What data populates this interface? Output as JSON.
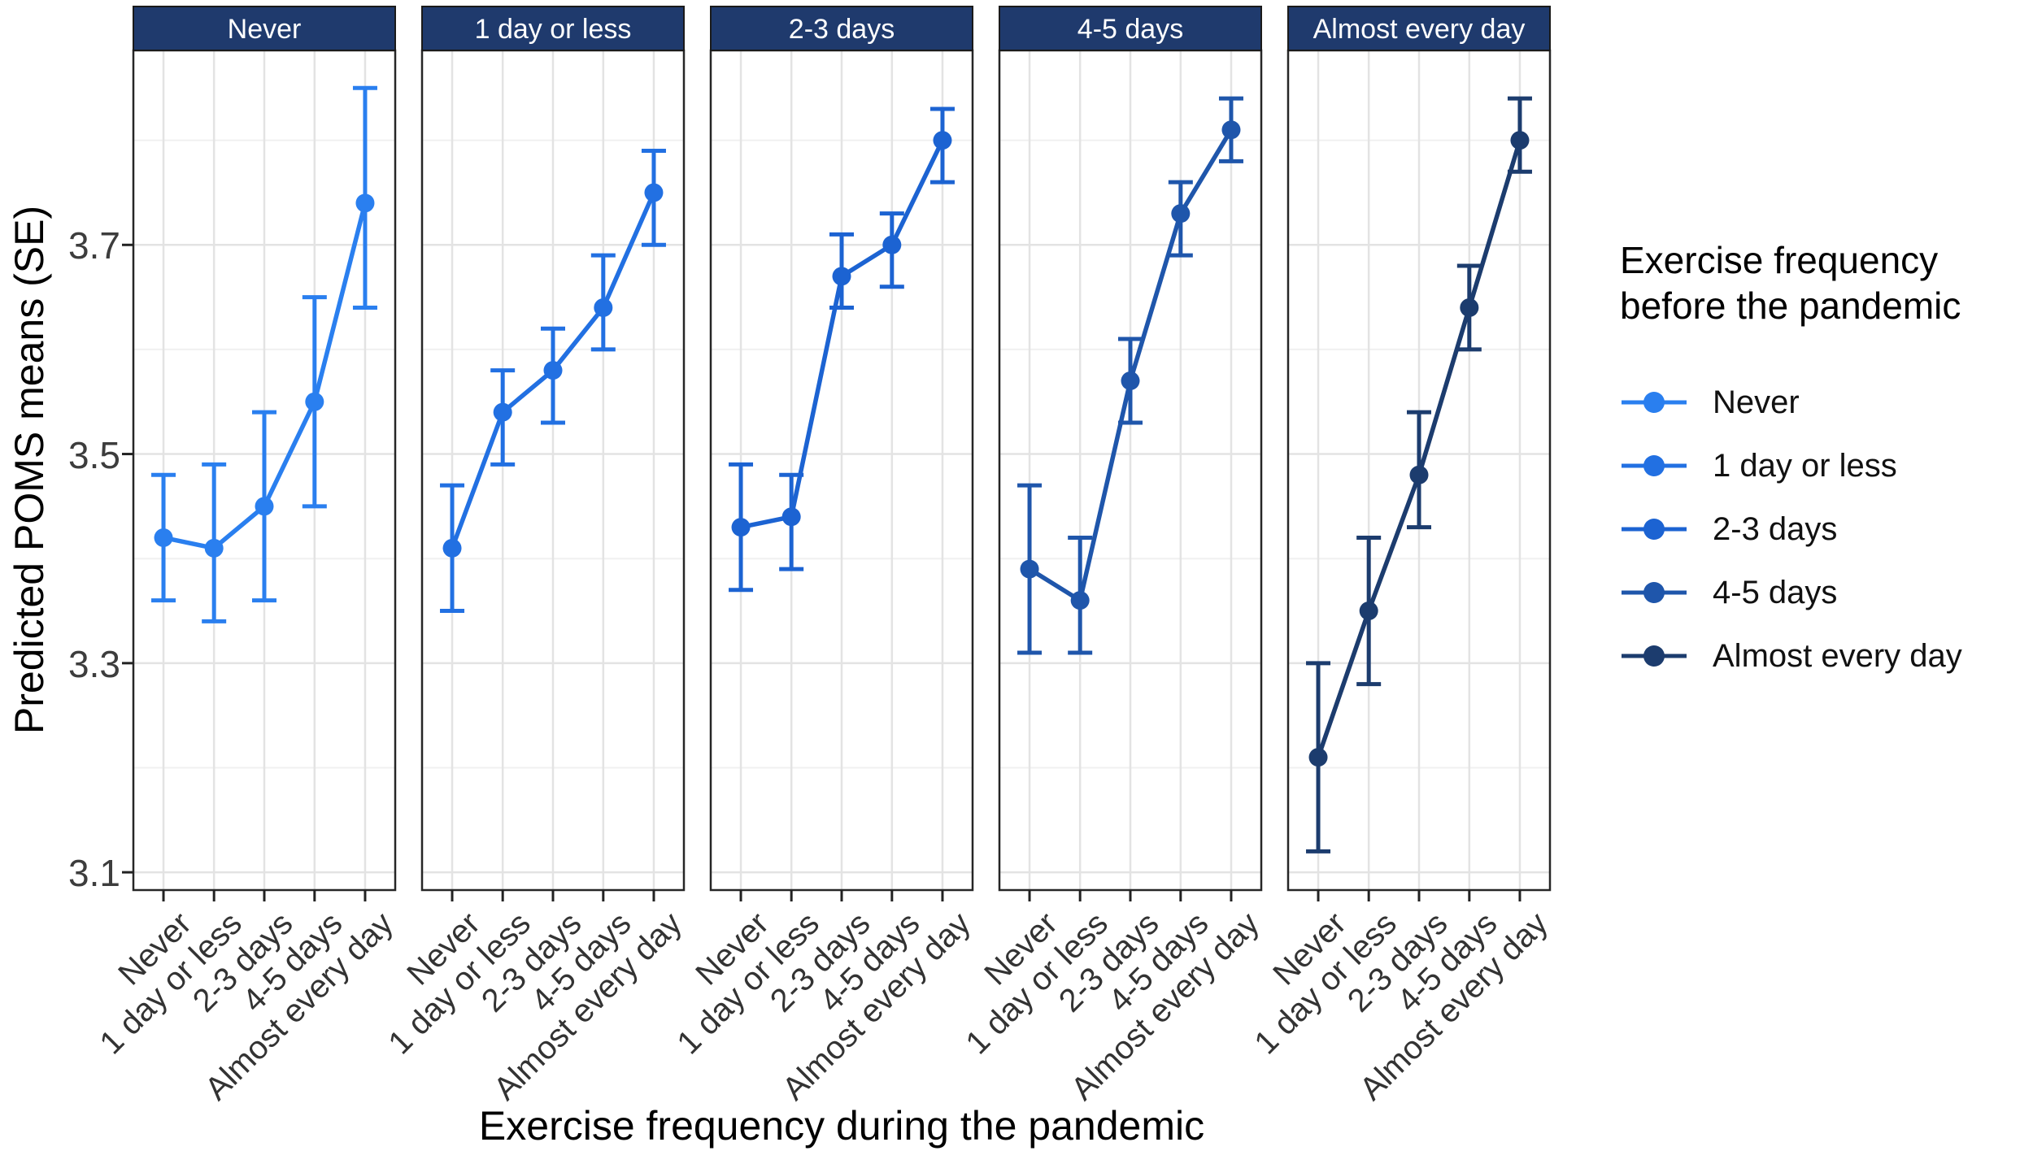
{
  "figure": {
    "y_axis": {
      "title": "Predicted POMS means (SE)",
      "tick_labels": [
        "3.7",
        "3.5",
        "3.3",
        "3.1"
      ],
      "tick_values": [
        3.7,
        3.5,
        3.3,
        3.1
      ],
      "minor_gridlines": [
        3.8,
        3.6,
        3.4,
        3.2
      ],
      "domain": [
        3.083,
        3.886
      ]
    },
    "x_axis": {
      "title": "Exercise frequency during the pandemic",
      "categories": [
        "Never",
        "1 day or less",
        "2-3 days",
        "4-5 days",
        "Almost every day"
      ]
    },
    "legend": {
      "title_lines": [
        "Exercise frequency",
        "before the pandemic"
      ],
      "items": [
        {
          "label": "Never",
          "color": "#2A7FEF"
        },
        {
          "label": "1 day or less",
          "color": "#2270E2"
        },
        {
          "label": "2-3 days",
          "color": "#1C63D2"
        },
        {
          "label": "4-5 days",
          "color": "#1F56AB"
        },
        {
          "label": "Almost every day",
          "color": "#1C3C6E"
        }
      ]
    },
    "style": {
      "strip_bg": "#1F3A6D",
      "strip_text_color": "#FFFFFF",
      "panel_border": "#262626",
      "grid_major": "#E3E3E3",
      "grid_minor": "#F0F0F0",
      "tick_color": "#222222"
    }
  },
  "chart_data": {
    "type": "line",
    "title": "",
    "xlabel": "Exercise frequency during the pandemic",
    "ylabel": "Predicted POMS means (SE)",
    "x": [
      "Never",
      "1 day or less",
      "2-3 days",
      "4-5 days",
      "Almost every day"
    ],
    "ylim": [
      3.083,
      3.886
    ],
    "yticks": [
      3.1,
      3.3,
      3.5,
      3.7
    ],
    "grid": true,
    "legend_position": "right",
    "facet_variable": "Exercise frequency before the pandemic",
    "facets": [
      {
        "label": "Never",
        "color": "#2A7FEF",
        "means": [
          3.42,
          3.41,
          3.45,
          3.55,
          3.74
        ],
        "lower": [
          3.36,
          3.34,
          3.36,
          3.45,
          3.64
        ],
        "upper": [
          3.48,
          3.49,
          3.54,
          3.65,
          3.85
        ]
      },
      {
        "label": "1 day or less",
        "color": "#2270E2",
        "means": [
          3.41,
          3.54,
          3.58,
          3.64,
          3.75
        ],
        "lower": [
          3.35,
          3.49,
          3.53,
          3.6,
          3.7
        ],
        "upper": [
          3.47,
          3.58,
          3.62,
          3.69,
          3.79
        ]
      },
      {
        "label": "2-3 days",
        "color": "#1C63D2",
        "means": [
          3.43,
          3.44,
          3.67,
          3.7,
          3.8
        ],
        "lower": [
          3.37,
          3.39,
          3.64,
          3.66,
          3.76
        ],
        "upper": [
          3.49,
          3.48,
          3.71,
          3.73,
          3.83
        ]
      },
      {
        "label": "4-5 days",
        "color": "#1F56AB",
        "means": [
          3.39,
          3.36,
          3.57,
          3.73,
          3.81
        ],
        "lower": [
          3.31,
          3.31,
          3.53,
          3.69,
          3.78
        ],
        "upper": [
          3.47,
          3.42,
          3.61,
          3.76,
          3.84
        ]
      },
      {
        "label": "Almost every day",
        "color": "#1C3C6E",
        "means": [
          3.21,
          3.35,
          3.48,
          3.64,
          3.8
        ],
        "lower": [
          3.12,
          3.28,
          3.43,
          3.6,
          3.77
        ],
        "upper": [
          3.3,
          3.42,
          3.54,
          3.68,
          3.84
        ]
      }
    ]
  }
}
